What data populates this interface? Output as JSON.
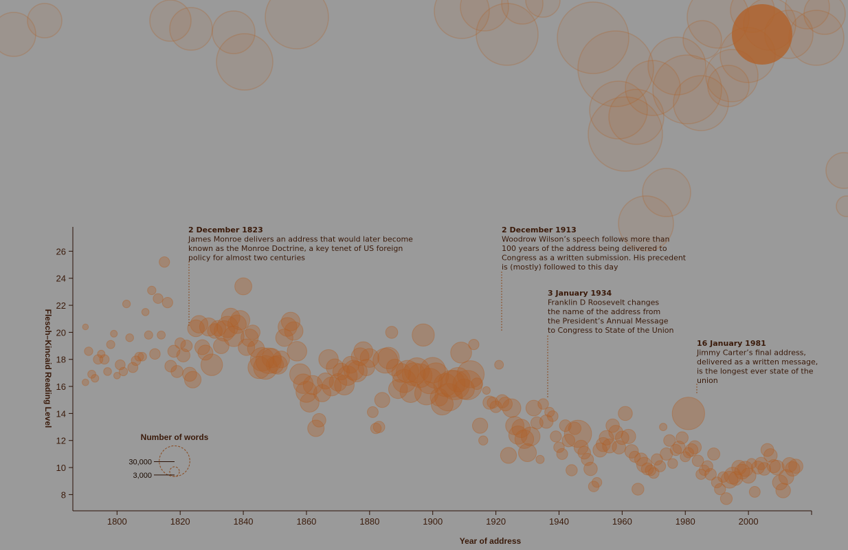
{
  "chart_data": {
    "type": "scatter",
    "title": "",
    "xlabel": "Year of address",
    "ylabel": "Flesch–Kincaid Reading Level",
    "xlim": [
      1786,
      2020
    ],
    "ylim": [
      6.8,
      27.8
    ],
    "x_ticks": [
      1800,
      1820,
      1840,
      1860,
      1880,
      1900,
      1920,
      1940,
      1960,
      1980,
      2000
    ],
    "y_ticks": [
      8,
      10,
      12,
      14,
      16,
      18,
      20,
      22,
      24,
      26
    ],
    "grid": false,
    "bubble_color": "#b0622b",
    "size_legend": {
      "title": "Number of words",
      "items": [
        {
          "label": "30,000",
          "words": 30000
        },
        {
          "label": "3,000",
          "words": 3000
        }
      ]
    },
    "annotations": [
      {
        "year": 1823,
        "date": "2 December 1823",
        "text": [
          "James Monroe delivers an address that would later become",
          "known as the Monroe Doctrine, a key tenet of US foreign",
          "policy for almost two centuries"
        ]
      },
      {
        "year": 1913,
        "date": "2 December 1913",
        "text": [
          "Woodrow Wilson’s speech follows more than",
          "100 years of the address being delivered to",
          "Congress as a written submission. His precedent",
          "is (mostly) followed to this day"
        ]
      },
      {
        "year": 1934,
        "date": "3 January 1934",
        "text": [
          "Franklin D Roosevelt changes",
          "the name of the address from",
          "the President’s Annual Message",
          "to Congress to State of the Union"
        ]
      },
      {
        "year": 1981,
        "date": "16 January 1981",
        "text": [
          "Jimmy Carter’s final address,",
          "delivered as a written message,",
          "is the longest ever state of the",
          "union"
        ]
      }
    ],
    "points": [
      [
        1790,
        20.4,
        1100
      ],
      [
        1790,
        16.3,
        1400
      ],
      [
        1791,
        18.6,
        2300
      ],
      [
        1792,
        16.9,
        2100
      ],
      [
        1793,
        16.6,
        1900
      ],
      [
        1794,
        18.0,
        2900
      ],
      [
        1795,
        18.4,
        1800
      ],
      [
        1796,
        18.0,
        2900
      ],
      [
        1797,
        17.1,
        2000
      ],
      [
        1798,
        19.1,
        2200
      ],
      [
        1799,
        19.9,
        1500
      ],
      [
        1800,
        16.8,
        1400
      ],
      [
        1801,
        17.6,
        3200
      ],
      [
        1802,
        17.1,
        2300
      ],
      [
        1803,
        22.1,
        1900
      ],
      [
        1804,
        19.6,
        2000
      ],
      [
        1805,
        17.4,
        3300
      ],
      [
        1806,
        17.9,
        2900
      ],
      [
        1807,
        18.2,
        2500
      ],
      [
        1808,
        18.2,
        2400
      ],
      [
        1809,
        21.5,
        1700
      ],
      [
        1810,
        19.8,
        2200
      ],
      [
        1811,
        23.1,
        2300
      ],
      [
        1812,
        18.4,
        3600
      ],
      [
        1813,
        22.5,
        3100
      ],
      [
        1814,
        19.8,
        2100
      ],
      [
        1815,
        25.2,
        3500
      ],
      [
        1816,
        22.2,
        3500
      ],
      [
        1817,
        17.5,
        4400
      ],
      [
        1818,
        18.6,
        4700
      ],
      [
        1819,
        17.1,
        4700
      ],
      [
        1820,
        19.2,
        3600
      ],
      [
        1821,
        18.3,
        5600
      ],
      [
        1822,
        19.0,
        4300
      ],
      [
        1823,
        16.9,
        6400
      ],
      [
        1824,
        16.5,
        8800
      ],
      [
        1825,
        20.3,
        9000
      ],
      [
        1826,
        20.6,
        9800
      ],
      [
        1827,
        18.9,
        7200
      ],
      [
        1828,
        18.5,
        7300
      ],
      [
        1829,
        20.4,
        10500
      ],
      [
        1830,
        17.6,
        15000
      ],
      [
        1831,
        20.1,
        7000
      ],
      [
        1832,
        20.3,
        7800
      ],
      [
        1833,
        19.0,
        7800
      ],
      [
        1834,
        20.1,
        13400
      ],
      [
        1835,
        20.4,
        14500
      ],
      [
        1836,
        21.1,
        11000
      ],
      [
        1837,
        19.7,
        13400
      ],
      [
        1838,
        20.6,
        11000
      ],
      [
        1839,
        20.9,
        12000
      ],
      [
        1840,
        23.4,
        9300
      ],
      [
        1841,
        18.9,
        8800
      ],
      [
        1842,
        19.6,
        9700
      ],
      [
        1843,
        20.0,
        6800
      ],
      [
        1844,
        18.8,
        9100
      ],
      [
        1845,
        17.4,
        15900
      ],
      [
        1846,
        18.0,
        18000
      ],
      [
        1847,
        17.4,
        18000
      ],
      [
        1848,
        17.9,
        21000
      ],
      [
        1849,
        18.1,
        12000
      ],
      [
        1850,
        17.6,
        9500
      ],
      [
        1851,
        17.6,
        11200
      ],
      [
        1852,
        18.0,
        9000
      ],
      [
        1853,
        19.6,
        9600
      ],
      [
        1854,
        20.4,
        11400
      ],
      [
        1855,
        20.8,
        11100
      ],
      [
        1856,
        20.1,
        10900
      ],
      [
        1857,
        18.6,
        12300
      ],
      [
        1858,
        16.9,
        14000
      ],
      [
        1859,
        16.2,
        12300
      ],
      [
        1860,
        15.6,
        14100
      ],
      [
        1861,
        14.8,
        11500
      ],
      [
        1862,
        16.1,
        11600
      ],
      [
        1863,
        12.9,
        8700
      ],
      [
        1864,
        13.5,
        5900
      ],
      [
        1865,
        15.5,
        9500
      ],
      [
        1866,
        16.4,
        8400
      ],
      [
        1867,
        18.0,
        12300
      ],
      [
        1868,
        16.0,
        11500
      ],
      [
        1869,
        17.4,
        9500
      ],
      [
        1870,
        16.3,
        9900
      ],
      [
        1871,
        17.1,
        8900
      ],
      [
        1872,
        16.1,
        12500
      ],
      [
        1873,
        16.8,
        12300
      ],
      [
        1874,
        17.6,
        9100
      ],
      [
        1875,
        17.2,
        12800
      ],
      [
        1876,
        17.1,
        13500
      ],
      [
        1877,
        18.2,
        10100
      ],
      [
        1878,
        18.6,
        11600
      ],
      [
        1879,
        17.4,
        8600
      ],
      [
        1880,
        18.1,
        11300
      ],
      [
        1881,
        14.1,
        3800
      ],
      [
        1882,
        12.9,
        3600
      ],
      [
        1883,
        13.0,
        4200
      ],
      [
        1884,
        15.0,
        7300
      ],
      [
        1885,
        17.9,
        19800
      ],
      [
        1886,
        18.1,
        14900
      ],
      [
        1887,
        20.0,
        4700
      ],
      [
        1888,
        17.4,
        9000
      ],
      [
        1889,
        15.8,
        11400
      ],
      [
        1890,
        17.0,
        11400
      ],
      [
        1891,
        16.4,
        17400
      ],
      [
        1892,
        17.1,
        16200
      ],
      [
        1893,
        15.6,
        14600
      ],
      [
        1894,
        16.9,
        16900
      ],
      [
        1895,
        17.2,
        19800
      ],
      [
        1896,
        16.8,
        18200
      ],
      [
        1897,
        19.8,
        15800
      ],
      [
        1898,
        15.5,
        17600
      ],
      [
        1899,
        16.4,
        20800
      ],
      [
        1900,
        17.2,
        20800
      ],
      [
        1901,
        16.8,
        20800
      ],
      [
        1902,
        15.2,
        9900
      ],
      [
        1903,
        14.7,
        15500
      ],
      [
        1904,
        16.1,
        17200
      ],
      [
        1905,
        15.2,
        24200
      ],
      [
        1906,
        16.2,
        23300
      ],
      [
        1907,
        16.1,
        27500
      ],
      [
        1908,
        16.5,
        19100
      ],
      [
        1909,
        18.5,
        14100
      ],
      [
        1910,
        15.8,
        13100
      ],
      [
        1911,
        16.1,
        27600
      ],
      [
        1912,
        16.9,
        23600
      ],
      [
        1913,
        19.1,
        3500
      ],
      [
        1914,
        16.2,
        4300
      ],
      [
        1915,
        13.1,
        7500
      ],
      [
        1916,
        12.0,
        2700
      ],
      [
        1917,
        15.7,
        1900
      ],
      [
        1918,
        14.8,
        5600
      ],
      [
        1919,
        14.8,
        4000
      ],
      [
        1920,
        14.5,
        4500
      ],
      [
        1921,
        17.6,
        2500
      ],
      [
        1922,
        14.9,
        5700
      ],
      [
        1923,
        14.7,
        6200
      ],
      [
        1924,
        10.9,
        8200
      ],
      [
        1925,
        14.4,
        10900
      ],
      [
        1926,
        13.1,
        10800
      ],
      [
        1927,
        12.4,
        10800
      ],
      [
        1928,
        12.9,
        10900
      ],
      [
        1929,
        12.1,
        11300
      ],
      [
        1930,
        11.1,
        10300
      ],
      [
        1931,
        12.3,
        11400
      ],
      [
        1932,
        14.4,
        7900
      ],
      [
        1933,
        13.3,
        4800
      ],
      [
        1934,
        10.6,
        2200
      ],
      [
        1935,
        14.7,
        3600
      ],
      [
        1936,
        13.4,
        5800
      ],
      [
        1937,
        14.1,
        3000
      ],
      [
        1938,
        13.8,
        3700
      ],
      [
        1939,
        12.3,
        4000
      ],
      [
        1940,
        11.5,
        3600
      ],
      [
        1941,
        11.0,
        3900
      ],
      [
        1942,
        13.1,
        4400
      ],
      [
        1943,
        12.0,
        5200
      ],
      [
        1944,
        9.8,
        4100
      ],
      [
        1945,
        12.9,
        5000
      ],
      [
        1946,
        12.5,
        23800
      ],
      [
        1947,
        11.5,
        6400
      ],
      [
        1948,
        11.1,
        5200
      ],
      [
        1949,
        10.6,
        4800
      ],
      [
        1950,
        9.9,
        5800
      ],
      [
        1951,
        8.6,
        3600
      ],
      [
        1952,
        8.9,
        3100
      ],
      [
        1953,
        11.3,
        6500
      ],
      [
        1954,
        11.7,
        6400
      ],
      [
        1955,
        12.2,
        6700
      ],
      [
        1956,
        11.6,
        6400
      ],
      [
        1957,
        13.1,
        5800
      ],
      [
        1958,
        12.6,
        6400
      ],
      [
        1959,
        11.5,
        5800
      ],
      [
        1960,
        12.2,
        5800
      ],
      [
        1961,
        14.0,
        6400
      ],
      [
        1962,
        12.3,
        6700
      ],
      [
        1963,
        11.2,
        5900
      ],
      [
        1964,
        10.8,
        3900
      ],
      [
        1965,
        8.4,
        4600
      ],
      [
        1966,
        10.6,
        5400
      ],
      [
        1967,
        10.2,
        7400
      ],
      [
        1968,
        9.9,
        4700
      ],
      [
        1969,
        9.8,
        3700
      ],
      [
        1970,
        9.6,
        3700
      ],
      [
        1971,
        10.6,
        4100
      ],
      [
        1972,
        10.1,
        4000
      ],
      [
        1973,
        13.0,
        1800
      ],
      [
        1974,
        11.0,
        4900
      ],
      [
        1975,
        12.0,
        4400
      ],
      [
        1976,
        10.3,
        3100
      ],
      [
        1977,
        11.3,
        4000
      ],
      [
        1978,
        11.5,
        5000
      ],
      [
        1979,
        12.2,
        4700
      ],
      [
        1980,
        10.8,
        3300
      ],
      [
        1981,
        11.1,
        3500
      ],
      [
        1981,
        14.0,
        33700
      ],
      [
        1982,
        11.3,
        5100
      ],
      [
        1983,
        11.5,
        5500
      ],
      [
        1984,
        10.5,
        4200
      ],
      [
        1985,
        9.5,
        3400
      ],
      [
        1986,
        9.8,
        3400
      ],
      [
        1987,
        10.1,
        3800
      ],
      [
        1988,
        9.5,
        4300
      ],
      [
        1989,
        11.0,
        4800
      ],
      [
        1990,
        8.9,
        3800
      ],
      [
        1991,
        8.4,
        4000
      ],
      [
        1992,
        9.3,
        3600
      ],
      [
        1993,
        7.7,
        4500
      ],
      [
        1994,
        9.1,
        9200
      ],
      [
        1995,
        9.4,
        9000
      ],
      [
        1996,
        9.2,
        6100
      ],
      [
        1997,
        10.0,
        6700
      ],
      [
        1998,
        9.7,
        7300
      ],
      [
        1999,
        9.9,
        7500
      ],
      [
        2000,
        9.4,
        7300
      ],
      [
        2001,
        10.3,
        3200
      ],
      [
        2002,
        8.2,
        3800
      ],
      [
        2003,
        10.0,
        5400
      ],
      [
        2004,
        10.3,
        5000
      ],
      [
        2005,
        9.9,
        5200
      ],
      [
        2006,
        11.3,
        5300
      ],
      [
        2007,
        10.9,
        5700
      ],
      [
        2008,
        10.1,
        5600
      ],
      [
        2009,
        10.0,
        7000
      ],
      [
        2010,
        8.9,
        7200
      ],
      [
        2011,
        8.3,
        6900
      ],
      [
        2012,
        9.3,
        7100
      ],
      [
        2013,
        10.2,
        6900
      ],
      [
        2014,
        9.9,
        6800
      ],
      [
        2015,
        10.1,
        6500
      ]
    ]
  }
}
